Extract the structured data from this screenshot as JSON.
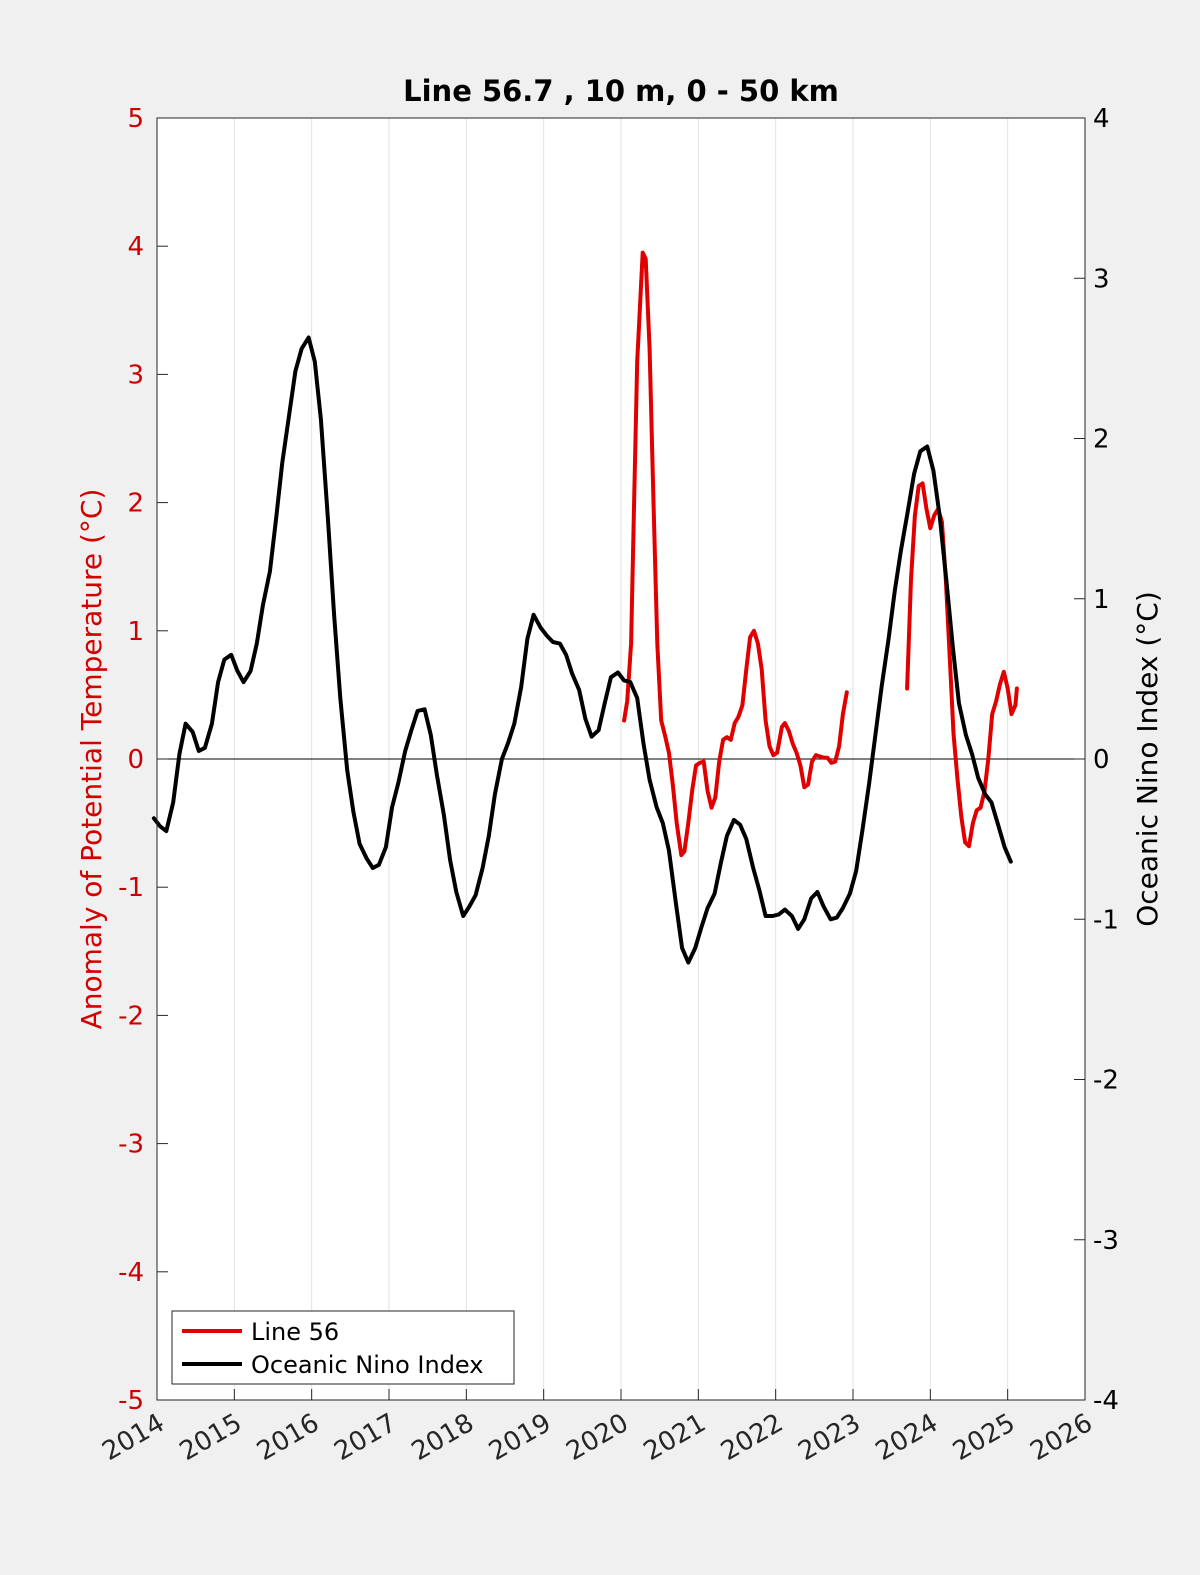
{
  "chart_data": {
    "type": "line",
    "title": "Line 56.7 , 10 m, 0 - 50 km",
    "ylabel_left": "Anomaly of Potential Temperature (°C)",
    "ylabel_right": "Oceanic Nino Index (°C)",
    "xlim": [
      2014,
      2026
    ],
    "ylim_left": [
      -5,
      5
    ],
    "ylim_right": [
      -4,
      4
    ],
    "x_ticks": [
      2014,
      2015,
      2016,
      2017,
      2018,
      2019,
      2020,
      2021,
      2022,
      2023,
      2024,
      2025,
      2026
    ],
    "x_tick_labels": [
      "2014",
      "2015",
      "2016",
      "2017",
      "2018",
      "2019",
      "2020",
      "2021",
      "2022",
      "2023",
      "2024",
      "2025",
      "2026"
    ],
    "y_left_ticks": [
      -5,
      -4,
      -3,
      -2,
      -1,
      0,
      1,
      2,
      3,
      4,
      5
    ],
    "y_left_tick_labels": [
      "-5",
      "-4",
      "-3",
      "-2",
      "-1",
      "0",
      "1",
      "2",
      "3",
      "4",
      "5"
    ],
    "y_right_ticks": [
      -4,
      -3,
      -2,
      -1,
      0,
      1,
      2,
      3,
      4
    ],
    "y_right_tick_labels": [
      "-4",
      "-3",
      "-2",
      "-1",
      "0",
      "1",
      "2",
      "3",
      "4"
    ],
    "grid": "vertical",
    "legend_position": "bottom-left",
    "colors": {
      "line56": "#e00000",
      "oni": "#000000",
      "axis_left": "#cc0000",
      "zero_line": "#000000"
    },
    "series": [
      {
        "name": "Line 56",
        "axis": "left",
        "color": "#e00000",
        "segments": [
          [
            [
              2020.04,
              0.3
            ],
            [
              2020.08,
              0.45
            ],
            [
              2020.13,
              0.9
            ],
            [
              2020.17,
              2.0
            ],
            [
              2020.21,
              3.1
            ],
            [
              2020.28,
              3.95
            ],
            [
              2020.32,
              3.9
            ],
            [
              2020.37,
              3.2
            ],
            [
              2020.42,
              2.0
            ],
            [
              2020.47,
              0.9
            ],
            [
              2020.52,
              0.3
            ],
            [
              2020.57,
              0.18
            ],
            [
              2020.62,
              0.05
            ],
            [
              2020.67,
              -0.2
            ],
            [
              2020.72,
              -0.5
            ],
            [
              2020.78,
              -0.75
            ],
            [
              2020.82,
              -0.72
            ],
            [
              2020.87,
              -0.5
            ],
            [
              2020.92,
              -0.25
            ],
            [
              2020.97,
              -0.05
            ],
            [
              2021.02,
              -0.03
            ],
            [
              2021.07,
              -0.02
            ],
            [
              2021.12,
              -0.25
            ],
            [
              2021.17,
              -0.38
            ],
            [
              2021.22,
              -0.3
            ],
            [
              2021.27,
              -0.02
            ],
            [
              2021.32,
              0.15
            ],
            [
              2021.37,
              0.17
            ],
            [
              2021.42,
              0.15
            ],
            [
              2021.47,
              0.28
            ],
            [
              2021.52,
              0.33
            ],
            [
              2021.57,
              0.42
            ],
            [
              2021.62,
              0.7
            ],
            [
              2021.67,
              0.95
            ],
            [
              2021.72,
              1.0
            ],
            [
              2021.77,
              0.9
            ],
            [
              2021.82,
              0.7
            ],
            [
              2021.87,
              0.3
            ],
            [
              2021.92,
              0.1
            ],
            [
              2021.97,
              0.03
            ],
            [
              2022.02,
              0.05
            ],
            [
              2022.08,
              0.25
            ],
            [
              2022.12,
              0.28
            ],
            [
              2022.17,
              0.22
            ],
            [
              2022.22,
              0.12
            ],
            [
              2022.27,
              0.05
            ],
            [
              2022.32,
              -0.05
            ],
            [
              2022.37,
              -0.22
            ],
            [
              2022.42,
              -0.2
            ],
            [
              2022.47,
              -0.02
            ],
            [
              2022.52,
              0.03
            ],
            [
              2022.57,
              0.02
            ],
            [
              2022.62,
              0.01
            ],
            [
              2022.67,
              0.01
            ],
            [
              2022.72,
              -0.03
            ],
            [
              2022.77,
              -0.02
            ],
            [
              2022.82,
              0.1
            ],
            [
              2022.87,
              0.35
            ],
            [
              2022.92,
              0.52
            ]
          ],
          [
            [
              2023.7,
              0.55
            ],
            [
              2023.75,
              1.4
            ],
            [
              2023.8,
              1.9
            ],
            [
              2023.85,
              2.13
            ],
            [
              2023.9,
              2.15
            ],
            [
              2023.95,
              1.95
            ],
            [
              2024.0,
              1.8
            ],
            [
              2024.05,
              1.9
            ],
            [
              2024.1,
              1.95
            ],
            [
              2024.15,
              1.85
            ],
            [
              2024.2,
              1.4
            ],
            [
              2024.25,
              0.8
            ],
            [
              2024.3,
              0.2
            ],
            [
              2024.35,
              -0.15
            ],
            [
              2024.4,
              -0.45
            ],
            [
              2024.45,
              -0.65
            ],
            [
              2024.5,
              -0.68
            ],
            [
              2024.55,
              -0.5
            ],
            [
              2024.6,
              -0.4
            ],
            [
              2024.65,
              -0.38
            ],
            [
              2024.7,
              -0.25
            ],
            [
              2024.75,
              0.0
            ],
            [
              2024.8,
              0.35
            ],
            [
              2024.85,
              0.45
            ],
            [
              2024.9,
              0.58
            ],
            [
              2024.95,
              0.68
            ],
            [
              2025.0,
              0.55
            ],
            [
              2025.05,
              0.35
            ],
            [
              2025.1,
              0.42
            ],
            [
              2025.12,
              0.55
            ]
          ]
        ]
      },
      {
        "name": "Oceanic Nino Index",
        "axis": "right",
        "color": "#000000",
        "segments": [
          [
            [
              2013.96,
              -0.37
            ],
            [
              2014.04,
              -0.42
            ],
            [
              2014.12,
              -0.45
            ],
            [
              2014.21,
              -0.27
            ],
            [
              2014.29,
              0.03
            ],
            [
              2014.37,
              0.22
            ],
            [
              2014.46,
              0.17
            ],
            [
              2014.54,
              0.05
            ],
            [
              2014.62,
              0.07
            ],
            [
              2014.71,
              0.22
            ],
            [
              2014.79,
              0.48
            ],
            [
              2014.87,
              0.62
            ],
            [
              2014.96,
              0.65
            ],
            [
              2015.04,
              0.55
            ],
            [
              2015.12,
              0.48
            ],
            [
              2015.21,
              0.55
            ],
            [
              2015.29,
              0.72
            ],
            [
              2015.37,
              0.96
            ],
            [
              2015.46,
              1.17
            ],
            [
              2015.54,
              1.5
            ],
            [
              2015.62,
              1.85
            ],
            [
              2015.71,
              2.15
            ],
            [
              2015.79,
              2.42
            ],
            [
              2015.87,
              2.56
            ],
            [
              2015.96,
              2.63
            ],
            [
              2016.04,
              2.48
            ],
            [
              2016.12,
              2.12
            ],
            [
              2016.21,
              1.5
            ],
            [
              2016.29,
              0.9
            ],
            [
              2016.37,
              0.38
            ],
            [
              2016.46,
              -0.07
            ],
            [
              2016.54,
              -0.33
            ],
            [
              2016.62,
              -0.53
            ],
            [
              2016.71,
              -0.62
            ],
            [
              2016.79,
              -0.68
            ],
            [
              2016.87,
              -0.66
            ],
            [
              2016.96,
              -0.55
            ],
            [
              2017.04,
              -0.3
            ],
            [
              2017.12,
              -0.15
            ],
            [
              2017.21,
              0.05
            ],
            [
              2017.29,
              0.18
            ],
            [
              2017.37,
              0.3
            ],
            [
              2017.46,
              0.31
            ],
            [
              2017.54,
              0.15
            ],
            [
              2017.62,
              -0.1
            ],
            [
              2017.71,
              -0.35
            ],
            [
              2017.79,
              -0.63
            ],
            [
              2017.87,
              -0.83
            ],
            [
              2017.96,
              -0.98
            ],
            [
              2018.04,
              -0.92
            ],
            [
              2018.12,
              -0.85
            ],
            [
              2018.21,
              -0.68
            ],
            [
              2018.29,
              -0.48
            ],
            [
              2018.37,
              -0.22
            ],
            [
              2018.46,
              0.0
            ],
            [
              2018.54,
              0.1
            ],
            [
              2018.62,
              0.22
            ],
            [
              2018.71,
              0.45
            ],
            [
              2018.79,
              0.75
            ],
            [
              2018.87,
              0.9
            ],
            [
              2018.96,
              0.82
            ],
            [
              2019.04,
              0.77
            ],
            [
              2019.12,
              0.73
            ],
            [
              2019.21,
              0.72
            ],
            [
              2019.29,
              0.65
            ],
            [
              2019.37,
              0.53
            ],
            [
              2019.46,
              0.43
            ],
            [
              2019.54,
              0.25
            ],
            [
              2019.62,
              0.14
            ],
            [
              2019.71,
              0.18
            ],
            [
              2019.79,
              0.35
            ],
            [
              2019.87,
              0.51
            ],
            [
              2019.96,
              0.54
            ],
            [
              2020.04,
              0.49
            ],
            [
              2020.12,
              0.48
            ],
            [
              2020.21,
              0.38
            ],
            [
              2020.29,
              0.1
            ],
            [
              2020.37,
              -0.13
            ],
            [
              2020.46,
              -0.3
            ],
            [
              2020.54,
              -0.4
            ],
            [
              2020.62,
              -0.57
            ],
            [
              2020.71,
              -0.9
            ],
            [
              2020.79,
              -1.18
            ],
            [
              2020.87,
              -1.27
            ],
            [
              2020.96,
              -1.18
            ],
            [
              2021.04,
              -1.05
            ],
            [
              2021.12,
              -0.93
            ],
            [
              2021.21,
              -0.84
            ],
            [
              2021.29,
              -0.65
            ],
            [
              2021.37,
              -0.48
            ],
            [
              2021.46,
              -0.38
            ],
            [
              2021.54,
              -0.41
            ],
            [
              2021.62,
              -0.5
            ],
            [
              2021.71,
              -0.68
            ],
            [
              2021.79,
              -0.82
            ],
            [
              2021.87,
              -0.98
            ],
            [
              2021.96,
              -0.98
            ],
            [
              2022.04,
              -0.97
            ],
            [
              2022.12,
              -0.94
            ],
            [
              2022.21,
              -0.98
            ],
            [
              2022.29,
              -1.06
            ],
            [
              2022.37,
              -1.0
            ],
            [
              2022.46,
              -0.87
            ],
            [
              2022.54,
              -0.83
            ],
            [
              2022.62,
              -0.92
            ],
            [
              2022.71,
              -1.0
            ],
            [
              2022.79,
              -0.99
            ],
            [
              2022.87,
              -0.93
            ],
            [
              2022.96,
              -0.84
            ],
            [
              2023.04,
              -0.7
            ],
            [
              2023.12,
              -0.45
            ],
            [
              2023.21,
              -0.15
            ],
            [
              2023.29,
              0.15
            ],
            [
              2023.37,
              0.45
            ],
            [
              2023.46,
              0.75
            ],
            [
              2023.54,
              1.05
            ],
            [
              2023.62,
              1.3
            ],
            [
              2023.71,
              1.55
            ],
            [
              2023.79,
              1.78
            ],
            [
              2023.87,
              1.92
            ],
            [
              2023.96,
              1.95
            ],
            [
              2024.04,
              1.8
            ],
            [
              2024.12,
              1.52
            ],
            [
              2024.21,
              1.1
            ],
            [
              2024.29,
              0.7
            ],
            [
              2024.37,
              0.35
            ],
            [
              2024.46,
              0.15
            ],
            [
              2024.54,
              0.03
            ],
            [
              2024.62,
              -0.12
            ],
            [
              2024.71,
              -0.22
            ],
            [
              2024.79,
              -0.27
            ],
            [
              2024.87,
              -0.4
            ],
            [
              2024.96,
              -0.55
            ],
            [
              2025.04,
              -0.64
            ]
          ]
        ]
      }
    ]
  }
}
